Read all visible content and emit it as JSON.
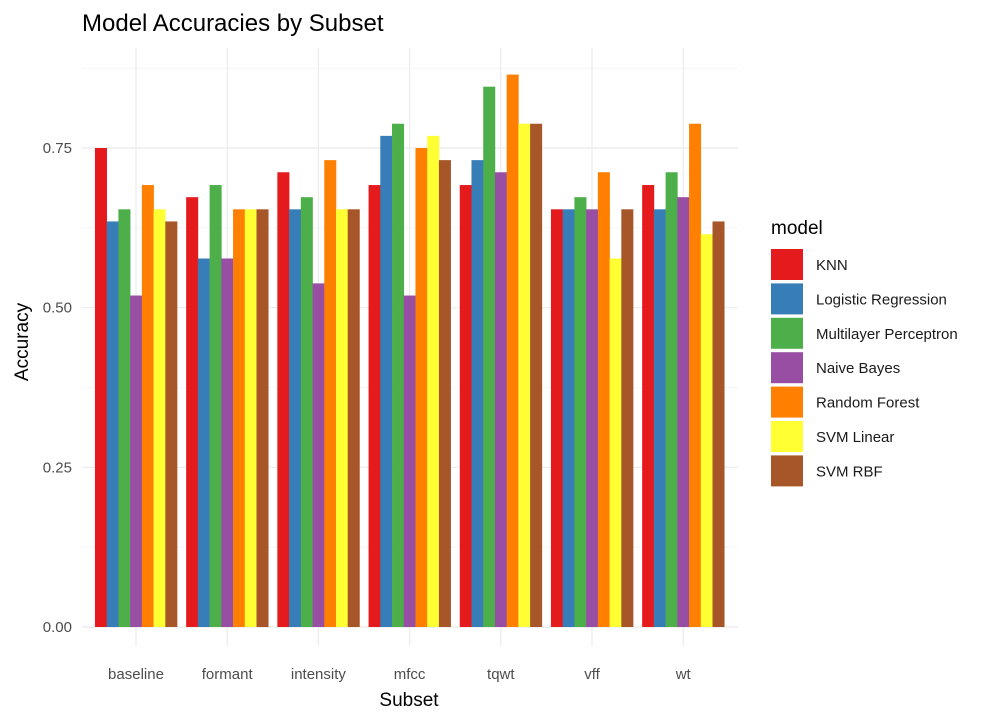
{
  "chart_data": {
    "type": "bar",
    "title": "Model Accuracies by Subset",
    "xlabel": "Subset",
    "ylabel": "Accuracy",
    "ylim": [
      0,
      0.9
    ],
    "yticks": [
      0.0,
      0.25,
      0.5,
      0.75
    ],
    "ytick_labels": [
      "0.00",
      "0.25",
      "0.50",
      "0.75"
    ],
    "categories": [
      "baseline",
      "formant",
      "intensity",
      "mfcc",
      "tqwt",
      "vff",
      "wt"
    ],
    "legend_title": "model",
    "legend_position": "right",
    "grid": true,
    "series": [
      {
        "name": "KNN",
        "color": "#e41a1c",
        "values": [
          0.75,
          0.673,
          0.712,
          0.692,
          0.692,
          0.654,
          0.692
        ]
      },
      {
        "name": "Logistic Regression",
        "color": "#377eb8",
        "values": [
          0.635,
          0.577,
          0.654,
          0.769,
          0.731,
          0.654,
          0.654
        ]
      },
      {
        "name": "Multilayer Perceptron",
        "color": "#4daf4a",
        "values": [
          0.654,
          0.692,
          0.673,
          0.788,
          0.846,
          0.673,
          0.712
        ]
      },
      {
        "name": "Naive Bayes",
        "color": "#984ea3",
        "values": [
          0.519,
          0.577,
          0.538,
          0.519,
          0.712,
          0.654,
          0.673
        ]
      },
      {
        "name": "Random Forest",
        "color": "#ff7f00",
        "values": [
          0.692,
          0.654,
          0.731,
          0.75,
          0.865,
          0.712,
          0.788
        ]
      },
      {
        "name": "SVM Linear",
        "color": "#ffff33",
        "values": [
          0.654,
          0.654,
          0.654,
          0.769,
          0.788,
          0.577,
          0.615
        ]
      },
      {
        "name": "SVM RBF",
        "color": "#a65628",
        "values": [
          0.635,
          0.654,
          0.654,
          0.731,
          0.788,
          0.654,
          0.635
        ]
      }
    ]
  }
}
